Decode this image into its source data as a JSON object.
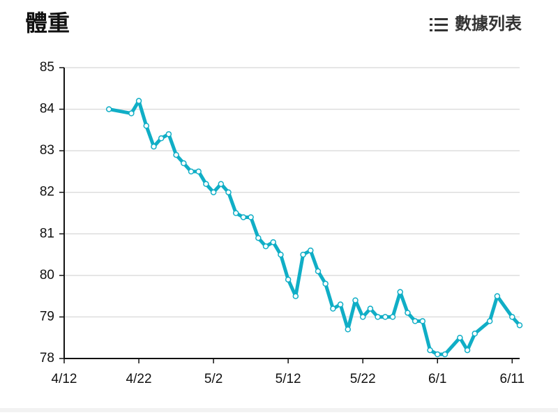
{
  "header": {
    "title": "體重",
    "button": "數據列表"
  },
  "chart_data": {
    "type": "line",
    "x": [
      "4/18",
      "4/21",
      "4/22",
      "4/23",
      "4/24",
      "4/25",
      "4/26",
      "4/27",
      "4/28",
      "4/29",
      "4/30",
      "5/1",
      "5/2",
      "5/3",
      "5/4",
      "5/5",
      "5/6",
      "5/7",
      "5/8",
      "5/9",
      "5/10",
      "5/11",
      "5/12",
      "5/13",
      "5/14",
      "5/15",
      "5/16",
      "5/17",
      "5/18",
      "5/19",
      "5/20",
      "5/21",
      "5/22",
      "5/23",
      "5/24",
      "5/25",
      "5/26",
      "5/27",
      "5/28",
      "5/29",
      "5/30",
      "5/31",
      "6/1",
      "6/2",
      "6/4",
      "6/5",
      "6/6",
      "6/8",
      "6/9",
      "6/11",
      "6/12"
    ],
    "series": [
      {
        "color": "#10aec6",
        "values": [
          84.0,
          83.9,
          84.2,
          83.6,
          83.1,
          83.3,
          83.4,
          82.9,
          82.7,
          82.5,
          82.5,
          82.2,
          82.0,
          82.2,
          82.0,
          81.5,
          81.4,
          81.4,
          80.9,
          80.7,
          80.8,
          80.5,
          79.9,
          79.5,
          80.5,
          80.6,
          80.1,
          79.8,
          79.2,
          79.3,
          78.7,
          79.4,
          79.0,
          79.2,
          79.0,
          79.0,
          79.0,
          79.6,
          79.1,
          78.9,
          78.9,
          78.2,
          78.1,
          78.1,
          78.5,
          78.2,
          78.6,
          78.9,
          79.5,
          79.0,
          78.8
        ]
      }
    ],
    "xlim": [
      "4/12",
      "6/12"
    ],
    "xticks": [
      "4/12",
      "4/22",
      "5/2",
      "5/12",
      "5/22",
      "6/1",
      "6/11"
    ],
    "ylim": [
      78,
      85
    ],
    "yticks": [
      78,
      79,
      80,
      81,
      82,
      83,
      84,
      85
    ],
    "grid": true
  }
}
